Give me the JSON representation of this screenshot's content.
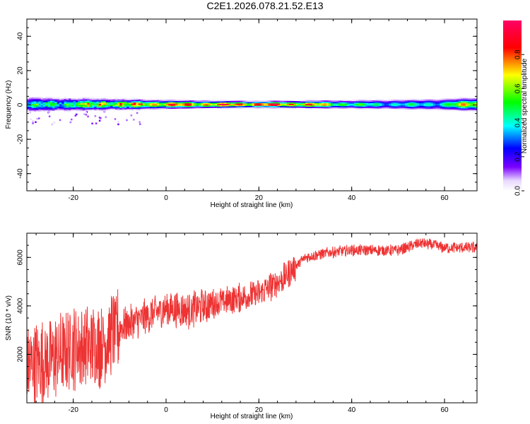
{
  "title": "C2E1.2026.078.21.52.E13",
  "chart_data": [
    {
      "type": "heatmap",
      "xlabel": "Height of straight line (km)",
      "ylabel": "Frequency (Hz)",
      "xlim": [
        -30,
        67
      ],
      "ylim": [
        -50,
        50
      ],
      "xticks": [
        -20,
        0,
        20,
        40,
        60
      ],
      "yticks": [
        -40,
        -20,
        0,
        20,
        40
      ],
      "colorbar": {
        "label": "Normalized spectral amplitude",
        "range": [
          0.0,
          1.0
        ],
        "ticks": [
          0.0,
          0.2,
          0.4,
          0.6,
          0.8
        ],
        "colors": [
          "#ffffff",
          "#6600ff",
          "#0000ff",
          "#00ffff",
          "#00ff00",
          "#ffff00",
          "#ff0000",
          "#ff0066"
        ]
      },
      "band_center_hz": 0,
      "band_halfwidth_hz": [
        {
          "x": -30,
          "w": 3.5
        },
        {
          "x": -20,
          "w": 3.0
        },
        {
          "x": -10,
          "w": 2.5
        },
        {
          "x": 0,
          "w": 2.0
        },
        {
          "x": 20,
          "w": 1.5
        },
        {
          "x": 40,
          "w": 2.0
        },
        {
          "x": 66,
          "w": 3.0
        }
      ],
      "peak_amplitude": [
        {
          "x": -30,
          "a": 0.45
        },
        {
          "x": -25,
          "a": 0.55
        },
        {
          "x": -20,
          "a": 0.6
        },
        {
          "x": -15,
          "a": 0.75
        },
        {
          "x": -10,
          "a": 0.8
        },
        {
          "x": 0,
          "a": 0.9
        },
        {
          "x": 10,
          "a": 0.9
        },
        {
          "x": 20,
          "a": 1.0
        },
        {
          "x": 30,
          "a": 0.9
        },
        {
          "x": 40,
          "a": 0.55
        },
        {
          "x": 50,
          "a": 0.45
        },
        {
          "x": 60,
          "a": 0.5
        },
        {
          "x": 66,
          "a": 0.9
        }
      ]
    },
    {
      "type": "line",
      "xlabel": "Height of straight line (km)",
      "ylabel": "SNR (10 * v/v)",
      "xlim": [
        -30,
        67
      ],
      "ylim": [
        0,
        7000
      ],
      "xticks": [
        -20,
        0,
        20,
        40,
        60
      ],
      "yticks": [
        2000,
        4000,
        6000
      ],
      "color": "#ee3333",
      "trend": [
        {
          "x": -30,
          "y": 1500
        },
        {
          "x": -25,
          "y": 1800
        },
        {
          "x": -20,
          "y": 2300
        },
        {
          "x": -15,
          "y": 2300
        },
        {
          "x": -10,
          "y": 3100
        },
        {
          "x": -5,
          "y": 3500
        },
        {
          "x": 0,
          "y": 3900
        },
        {
          "x": 5,
          "y": 3800
        },
        {
          "x": 10,
          "y": 4100
        },
        {
          "x": 15,
          "y": 4300
        },
        {
          "x": 20,
          "y": 4500
        },
        {
          "x": 25,
          "y": 5100
        },
        {
          "x": 30,
          "y": 6000
        },
        {
          "x": 35,
          "y": 6200
        },
        {
          "x": 40,
          "y": 6300
        },
        {
          "x": 45,
          "y": 6300
        },
        {
          "x": 50,
          "y": 6300
        },
        {
          "x": 55,
          "y": 6600
        },
        {
          "x": 60,
          "y": 6400
        },
        {
          "x": 67,
          "y": 6400
        }
      ]
    }
  ]
}
